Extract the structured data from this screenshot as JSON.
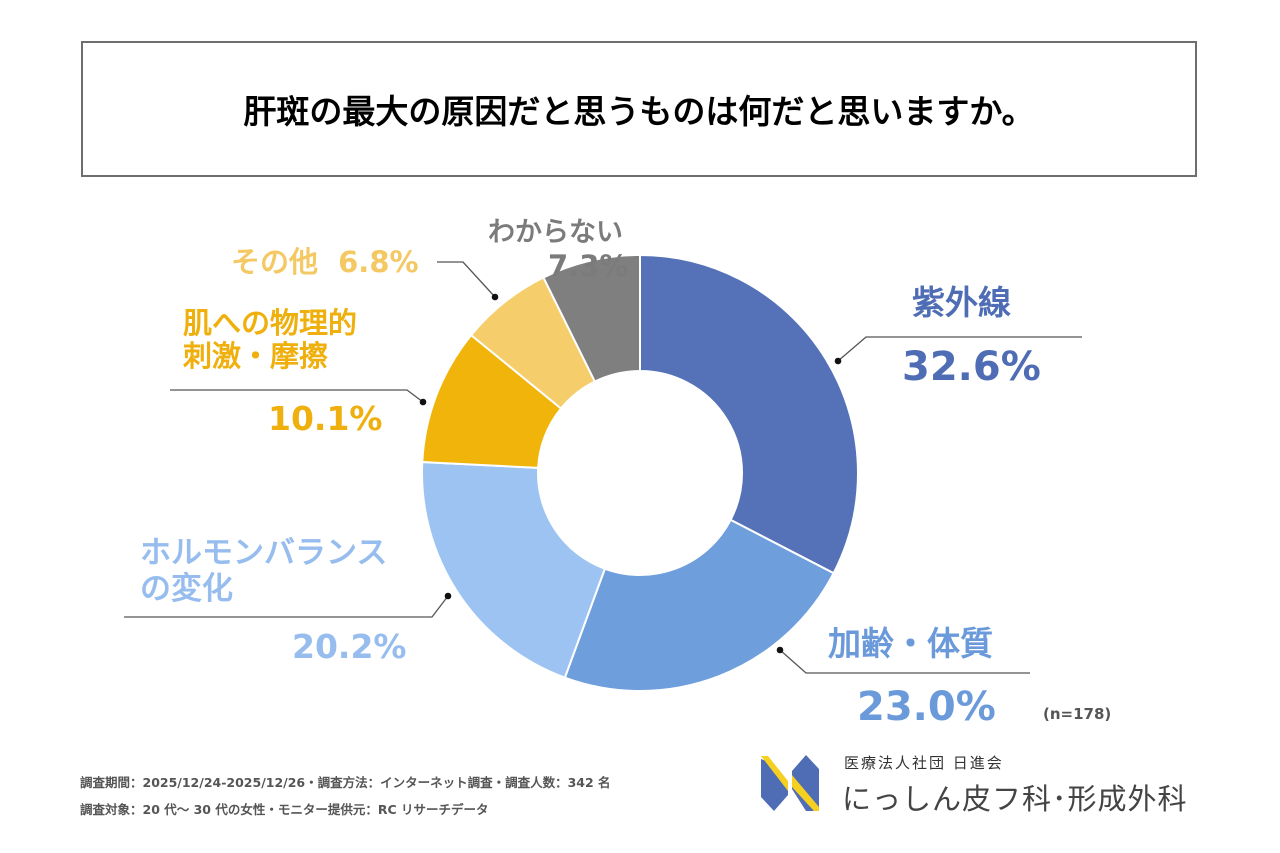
{
  "title": "肝斑の最大の原因だと思うものは何だと思いますか。",
  "chart_data": {
    "type": "pie",
    "variant": "donut",
    "title": "肝斑の最大の原因だと思うものは何だと思いますか。",
    "start": "12 o'clock, clockwise",
    "unit": "%",
    "slices": [
      {
        "label": "紫外線",
        "label_lines": [
          "紫外線"
        ],
        "value": 32.6,
        "value_text": "32.6%",
        "color": "#5572B8",
        "text_color": "#4F6DB5"
      },
      {
        "label": "加齢・体質",
        "label_lines": [
          "加齢・体質"
        ],
        "value": 23.0,
        "value_text": "23.0%",
        "color": "#6F9EDD",
        "text_color": "#6B9ADB"
      },
      {
        "label": "ホルモンバランスの変化",
        "label_lines": [
          "ホルモンバランス",
          "の変化"
        ],
        "value": 20.2,
        "value_text": "20.2%",
        "color": "#9DC3F2",
        "text_color": "#97BDEE"
      },
      {
        "label": "肌への物理的刺激・摩擦",
        "label_lines": [
          "肌への物理的",
          "刺激・摩擦"
        ],
        "value": 10.1,
        "value_text": "10.1%",
        "color": "#F0B40B",
        "text_color": "#EFB00D"
      },
      {
        "label": "その他",
        "label_lines": [
          "その他"
        ],
        "value": 6.8,
        "value_text": "6.8%",
        "color": "#F5CD6B",
        "text_color": "#F4C862"
      },
      {
        "label": "わからない",
        "label_lines": [
          "わからない"
        ],
        "value": 7.3,
        "value_text": "7.3%",
        "color": "#7F7F7F",
        "text_color": "#7B7B7B"
      }
    ],
    "sample_size": "(n=178)",
    "legend": "none (direct labels with leader lines)"
  },
  "footer": {
    "line1": "調査期間：2025/12/24-2025/12/26・調査方法：インターネット調査・調査人数：342 名",
    "line2": "調査対象：20 代～ 30 代の女性・モニター提供元：RC リサーチデータ"
  },
  "logo": {
    "org": "医療法人社団 日進会",
    "name": "にっしん皮フ科･形成外科",
    "colors": {
      "blue": "#4F6DB5",
      "yellow": "#F5D020"
    }
  }
}
